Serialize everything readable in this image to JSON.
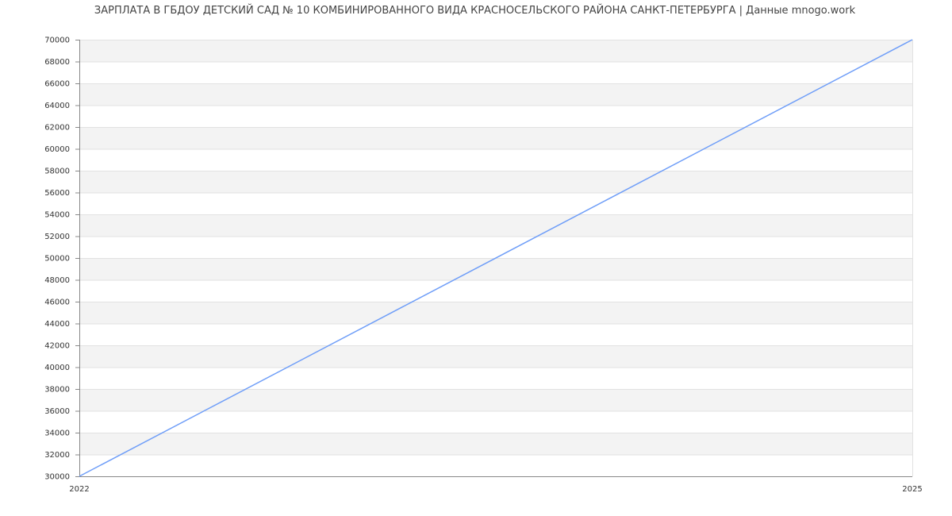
{
  "chart_data": {
    "type": "line",
    "title": "ЗАРПЛАТА В ГБДОУ ДЕТСКИЙ САД № 10 КОМБИНИРОВАННОГО ВИДА КРАСНОСЕЛЬСКОГО РАЙОНА САНКТ-ПЕТЕРБУРГА | Данные mnogo.work",
    "xlabel": "",
    "ylabel": "",
    "x": [
      2022,
      2025
    ],
    "series": [
      {
        "values": [
          30000,
          70000
        ],
        "color": "#6f9ef8"
      }
    ],
    "xlim": [
      2022,
      2025
    ],
    "ylim": [
      30000,
      70000
    ],
    "x_ticks": [
      "2022",
      "2025"
    ],
    "y_ticks": [
      "30000",
      "32000",
      "34000",
      "36000",
      "38000",
      "40000",
      "42000",
      "44000",
      "46000",
      "48000",
      "50000",
      "52000",
      "54000",
      "56000",
      "58000",
      "60000",
      "62000",
      "64000",
      "66000",
      "68000",
      "70000"
    ],
    "grid": true,
    "band_color": "#f3f3f3",
    "legend": "none"
  }
}
